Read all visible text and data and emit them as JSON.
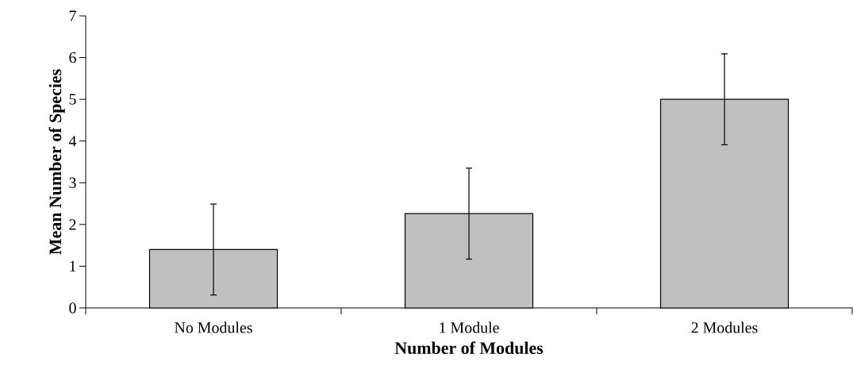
{
  "chart_data": {
    "type": "bar",
    "xlabel": "Number of Modules",
    "ylabel": "Mean Number of Species",
    "categories": [
      "No Modules",
      "1 Module",
      "2 Modules"
    ],
    "values": [
      1.4,
      2.26,
      5.0
    ],
    "errors": [
      1.09,
      1.09,
      1.09
    ],
    "color": "#c0c0c0",
    "ylim": [
      0,
      7
    ],
    "yticks": [
      0,
      1,
      2,
      3,
      4,
      5,
      6,
      7
    ],
    "grid": false
  }
}
